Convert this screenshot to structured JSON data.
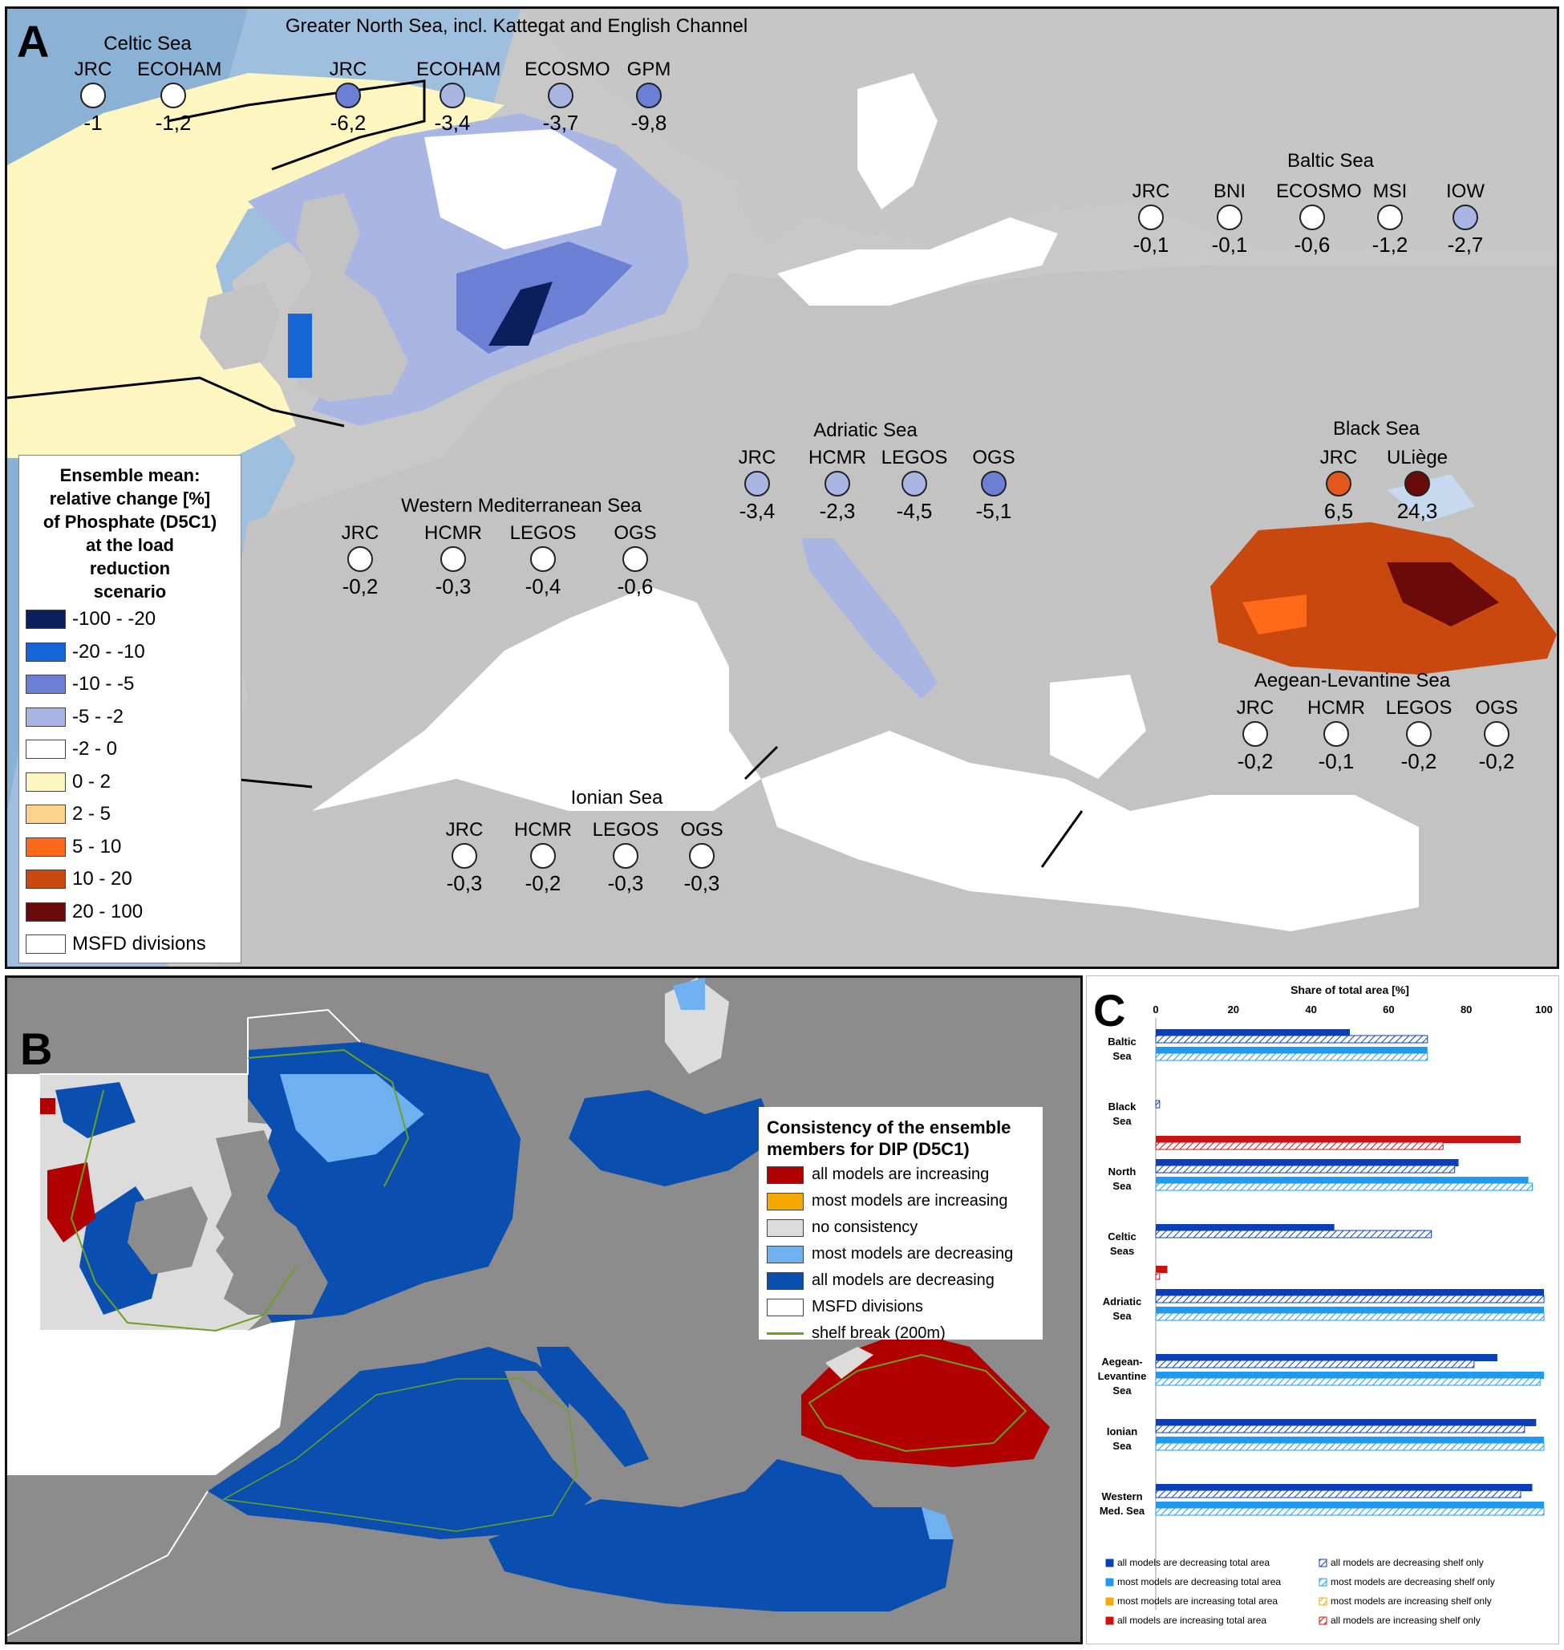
{
  "panel_a": {
    "letter": "A",
    "legend": {
      "title_lines": [
        "Ensemble mean:",
        "relative change [%]",
        "of Phosphate (D5C1)",
        "at the load",
        "reduction",
        "scenario"
      ],
      "items": [
        {
          "label": "-100 - -20",
          "color": "#0b1f5c"
        },
        {
          "label": "-20 - -10",
          "color": "#1565d6"
        },
        {
          "label": "-10 - -5",
          "color": "#6b7fd4"
        },
        {
          "label": "-5 - -2",
          "color": "#a9b6e4"
        },
        {
          "label": "-2 - 0",
          "color": "#ffffff"
        },
        {
          "label": "0 - 2",
          "color": "#fdf6c0"
        },
        {
          "label": "2 - 5",
          "color": "#fdd28a"
        },
        {
          "label": "5 - 10",
          "color": "#ff6a1a"
        },
        {
          "label": "10 - 20",
          "color": "#c9480f"
        },
        {
          "label": "20 - 100",
          "color": "#6b0a0a"
        },
        {
          "label": "MSFD divisions",
          "color": "#ffffff"
        }
      ]
    },
    "seas": [
      {
        "name": "Celtic Sea",
        "stations": [
          {
            "model": "JRC",
            "value": "-1",
            "color": "#ffffff"
          },
          {
            "model": "ECOHAM",
            "value": "-1,2",
            "color": "#ffffff"
          }
        ]
      },
      {
        "name": "Greater North Sea, incl. Kattegat and English Channel",
        "stations": [
          {
            "model": "JRC",
            "value": "-6,2",
            "color": "#6b7fd4"
          },
          {
            "model": "ECOHAM",
            "value": "-3,4",
            "color": "#a9b6e4"
          },
          {
            "model": "ECOSMO",
            "value": "-3,7",
            "color": "#a9b6e4"
          },
          {
            "model": "GPM",
            "value": "-9,8",
            "color": "#6b7fd4"
          }
        ]
      },
      {
        "name": "Baltic Sea",
        "stations": [
          {
            "model": "JRC",
            "value": "-0,1",
            "color": "#ffffff"
          },
          {
            "model": "BNI",
            "value": "-0,1",
            "color": "#ffffff"
          },
          {
            "model": "ECOSMO",
            "value": "-0,6",
            "color": "#ffffff"
          },
          {
            "model": "MSI",
            "value": "-1,2",
            "color": "#ffffff"
          },
          {
            "model": "IOW",
            "value": "-2,7",
            "color": "#a9b6e4"
          }
        ]
      },
      {
        "name": "Adriatic Sea",
        "stations": [
          {
            "model": "JRC",
            "value": "-3,4",
            "color": "#a9b6e4"
          },
          {
            "model": "HCMR",
            "value": "-2,3",
            "color": "#a9b6e4"
          },
          {
            "model": "LEGOS",
            "value": "-4,5",
            "color": "#a9b6e4"
          },
          {
            "model": "OGS",
            "value": "-5,1",
            "color": "#6b7fd4"
          }
        ]
      },
      {
        "name": "Black Sea",
        "stations": [
          {
            "model": "JRC",
            "value": "6,5",
            "color": "#e2571a"
          },
          {
            "model": "ULiège",
            "value": "24,3",
            "color": "#6b0a0a"
          }
        ]
      },
      {
        "name": "Western Mediterranean Sea",
        "stations": [
          {
            "model": "JRC",
            "value": "-0,2",
            "color": "#ffffff"
          },
          {
            "model": "HCMR",
            "value": "-0,3",
            "color": "#ffffff"
          },
          {
            "model": "LEGOS",
            "value": "-0,4",
            "color": "#ffffff"
          },
          {
            "model": "OGS",
            "value": "-0,6",
            "color": "#ffffff"
          }
        ]
      },
      {
        "name": "Aegean-Levantine Sea",
        "stations": [
          {
            "model": "JRC",
            "value": "-0,2",
            "color": "#ffffff"
          },
          {
            "model": "HCMR",
            "value": "-0,1",
            "color": "#ffffff"
          },
          {
            "model": "LEGOS",
            "value": "-0,2",
            "color": "#ffffff"
          },
          {
            "model": "OGS",
            "value": "-0,2",
            "color": "#ffffff"
          }
        ]
      },
      {
        "name": "Ionian Sea",
        "stations": [
          {
            "model": "JRC",
            "value": "-0,3",
            "color": "#ffffff"
          },
          {
            "model": "HCMR",
            "value": "-0,2",
            "color": "#ffffff"
          },
          {
            "model": "LEGOS",
            "value": "-0,3",
            "color": "#ffffff"
          },
          {
            "model": "OGS",
            "value": "-0,3",
            "color": "#ffffff"
          }
        ]
      }
    ]
  },
  "panel_b": {
    "letter": "B",
    "legend": {
      "title_lines": [
        "Consistency of the ensemble",
        "members for DIP (D5C1)"
      ],
      "items": [
        {
          "label": "all models are increasing",
          "color": "#b00000"
        },
        {
          "label": "most models are increasing",
          "color": "#f5a800"
        },
        {
          "label": "no consistency",
          "color": "#dcdcdc"
        },
        {
          "label": "most models are decreasing",
          "color": "#6fb0f0"
        },
        {
          "label": "all models are decreasing",
          "color": "#0a4fb0"
        },
        {
          "label": "MSFD divisions",
          "color": "#ffffff"
        },
        {
          "label": "shelf break (200m)",
          "color": "#6aa121"
        }
      ]
    }
  },
  "panel_c": {
    "letter": "C"
  },
  "chart_data": {
    "type": "bar",
    "orientation": "horizontal",
    "title": "Share of total area [%]",
    "xlim": [
      0,
      100
    ],
    "xticks": [
      0,
      20,
      40,
      60,
      80,
      100
    ],
    "categories": [
      "Baltic Sea",
      "Black Sea",
      "North Sea",
      "Celtic Seas",
      "Adriatic Sea",
      "Aegean-Levantine Sea",
      "Ionian Sea",
      "Western Med. Sea"
    ],
    "category_lines": [
      [
        "Baltic",
        "Sea"
      ],
      [
        "Black",
        "Sea"
      ],
      [
        "North",
        "Sea"
      ],
      [
        "Celtic",
        "Seas"
      ],
      [
        "Adriatic",
        "Sea"
      ],
      [
        "Aegean-",
        "Levantine",
        "Sea"
      ],
      [
        "Ionian",
        "Sea"
      ],
      [
        "Western",
        "Med. Sea"
      ]
    ],
    "series": [
      {
        "name": "all models are decreasing total area",
        "color": "#0b3fb8",
        "style": "solid",
        "values": [
          50,
          0,
          78,
          46,
          100,
          88,
          98,
          97
        ]
      },
      {
        "name": "all models are decreasing shelf only",
        "color": "#0b3fb8",
        "style": "hatched",
        "values": [
          70,
          1,
          77,
          71,
          100,
          82,
          95,
          94
        ]
      },
      {
        "name": "most models are decreasing total area",
        "color": "#1e9bf0",
        "style": "solid",
        "values": [
          70,
          0,
          96,
          0,
          100,
          100,
          100,
          100
        ]
      },
      {
        "name": "most models are decreasing shelf only",
        "color": "#1e9bf0",
        "style": "hatched",
        "values": [
          70,
          0,
          97,
          0,
          100,
          99,
          100,
          100
        ]
      },
      {
        "name": "most models are increasing total area",
        "color": "#f5a800",
        "style": "solid",
        "values": [
          0,
          0,
          0,
          0,
          0,
          0,
          0,
          0
        ]
      },
      {
        "name": "most models are increasing shelf only",
        "color": "#f5a800",
        "style": "hatched",
        "values": [
          0,
          0,
          0,
          0,
          0,
          0,
          0,
          0
        ]
      },
      {
        "name": "all models are increasing total area",
        "color": "#cc1111",
        "style": "solid",
        "values": [
          0,
          94,
          0,
          3,
          0,
          0,
          0,
          0
        ]
      },
      {
        "name": "all models are increasing shelf only",
        "color": "#cc1111",
        "style": "hatched",
        "values": [
          0,
          74,
          0,
          1,
          0,
          0,
          0,
          0
        ]
      }
    ],
    "grid": false,
    "legend_position": "bottom"
  }
}
